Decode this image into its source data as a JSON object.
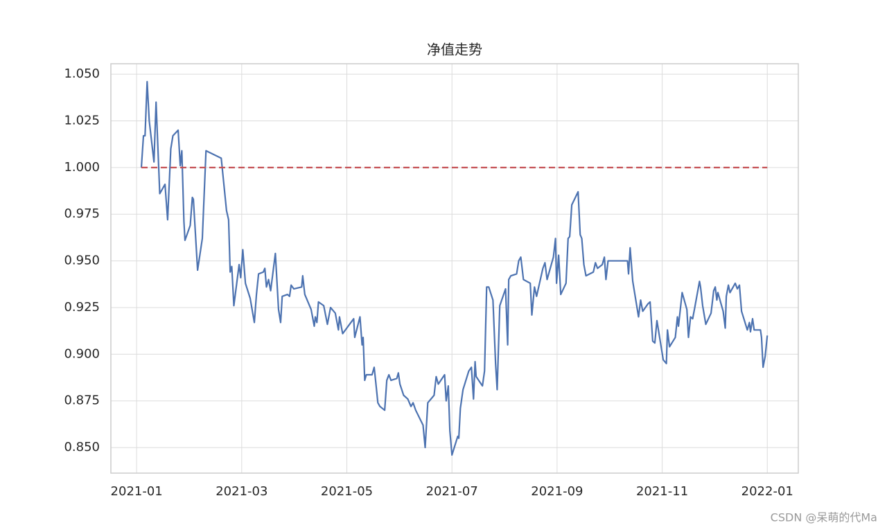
{
  "chart_data": {
    "type": "line",
    "title": "净值走势",
    "watermark": "CSDN @呆萌的代Ma",
    "xlim": [
      0.51,
      13.59
    ],
    "ylim": [
      0.8363,
      1.0556
    ],
    "grid": true,
    "xticks": [
      {
        "value": 1,
        "label": "2021-01"
      },
      {
        "value": 3,
        "label": "2021-03"
      },
      {
        "value": 5,
        "label": "2021-05"
      },
      {
        "value": 7,
        "label": "2021-07"
      },
      {
        "value": 9,
        "label": "2021-09"
      },
      {
        "value": 11,
        "label": "2021-11"
      },
      {
        "value": 13,
        "label": "2022-01"
      }
    ],
    "yticks": [
      {
        "value": 0.85,
        "label": "0.850"
      },
      0.875,
      {
        "value": 0.9,
        "label": "0.900"
      },
      0.925,
      {
        "value": 0.95,
        "label": "0.950"
      },
      0.975,
      {
        "value": 1.0,
        "label": "1.000"
      },
      1.025,
      {
        "value": 1.05,
        "label": "1.050"
      }
    ],
    "series": [
      {
        "color": "#4c72b0",
        "style": "solid",
        "x": [
          1.09,
          1.13,
          1.16,
          1.2,
          1.24,
          1.33,
          1.37,
          1.44,
          1.54,
          1.59,
          1.65,
          1.69,
          1.79,
          1.83,
          1.86,
          1.9,
          1.92,
          2.02,
          2.06,
          2.08,
          2.16,
          2.25,
          2.32,
          2.61,
          2.71,
          2.75,
          2.78,
          2.81,
          2.85,
          2.95,
          2.98,
          3.02,
          3.07,
          3.16,
          3.24,
          3.28,
          3.32,
          3.41,
          3.44,
          3.47,
          3.51,
          3.55,
          3.64,
          3.7,
          3.74,
          3.77,
          3.87,
          3.91,
          3.94,
          3.99,
          4.14,
          4.16,
          4.2,
          4.32,
          4.38,
          4.4,
          4.43,
          4.46,
          4.56,
          4.63,
          4.69,
          4.78,
          4.84,
          4.86,
          4.92,
          5.13,
          5.15,
          5.25,
          5.29,
          5.31,
          5.34,
          5.37,
          5.48,
          5.52,
          5.55,
          5.59,
          5.63,
          5.72,
          5.76,
          5.8,
          5.84,
          5.95,
          5.98,
          6.01,
          6.08,
          6.16,
          6.22,
          6.26,
          6.31,
          6.45,
          6.49,
          6.54,
          6.66,
          6.7,
          6.74,
          6.86,
          6.89,
          6.93,
          6.96,
          7.0,
          7.11,
          7.13,
          7.16,
          7.21,
          7.32,
          7.37,
          7.41,
          7.44,
          7.46,
          7.58,
          7.62,
          7.66,
          7.7,
          7.78,
          7.83,
          7.86,
          7.91,
          8.02,
          8.06,
          8.08,
          8.12,
          8.23,
          8.27,
          8.31,
          8.36,
          8.49,
          8.52,
          8.57,
          8.61,
          8.73,
          8.77,
          8.81,
          8.93,
          8.97,
          8.99,
          9.03,
          9.07,
          9.17,
          9.21,
          9.24,
          9.28,
          9.4,
          9.44,
          9.47,
          9.51,
          9.55,
          9.69,
          9.73,
          9.77,
          9.86,
          9.9,
          9.93,
          9.97,
          10.34,
          10.36,
          10.39,
          10.44,
          10.55,
          10.59,
          10.63,
          10.73,
          10.77,
          10.82,
          10.86,
          10.9,
          11.02,
          11.08,
          11.1,
          11.14,
          11.25,
          11.29,
          11.31,
          11.38,
          11.47,
          11.5,
          11.54,
          11.58,
          11.62,
          11.71,
          11.73,
          11.77,
          11.83,
          11.93,
          11.98,
          12.01,
          12.04,
          12.06,
          12.16,
          12.2,
          12.22,
          12.26,
          12.29,
          12.39,
          12.43,
          12.47,
          12.51,
          12.62,
          12.66,
          12.68,
          12.72,
          12.75,
          12.87,
          12.89,
          12.92,
          12.96,
          13.0
        ],
        "values": [
          1.0,
          1.017,
          1.017,
          1.046,
          1.025,
          1.003,
          1.035,
          0.986,
          0.991,
          0.972,
          1.01,
          1.017,
          1.02,
          1.001,
          1.009,
          0.971,
          0.961,
          0.969,
          0.984,
          0.983,
          0.945,
          0.962,
          1.009,
          1.005,
          0.977,
          0.972,
          0.944,
          0.947,
          0.926,
          0.948,
          0.941,
          0.956,
          0.938,
          0.93,
          0.917,
          0.932,
          0.943,
          0.944,
          0.946,
          0.936,
          0.94,
          0.934,
          0.954,
          0.924,
          0.917,
          0.931,
          0.932,
          0.931,
          0.937,
          0.935,
          0.936,
          0.942,
          0.932,
          0.924,
          0.915,
          0.92,
          0.917,
          0.928,
          0.926,
          0.916,
          0.925,
          0.922,
          0.913,
          0.92,
          0.911,
          0.919,
          0.909,
          0.92,
          0.905,
          0.909,
          0.886,
          0.889,
          0.889,
          0.893,
          0.885,
          0.874,
          0.872,
          0.87,
          0.886,
          0.889,
          0.886,
          0.887,
          0.89,
          0.884,
          0.878,
          0.876,
          0.872,
          0.874,
          0.87,
          0.862,
          0.85,
          0.874,
          0.878,
          0.888,
          0.884,
          0.889,
          0.875,
          0.883,
          0.859,
          0.846,
          0.856,
          0.855,
          0.871,
          0.881,
          0.891,
          0.893,
          0.876,
          0.896,
          0.888,
          0.883,
          0.891,
          0.936,
          0.936,
          0.929,
          0.895,
          0.881,
          0.926,
          0.935,
          0.905,
          0.94,
          0.942,
          0.943,
          0.95,
          0.952,
          0.94,
          0.938,
          0.921,
          0.936,
          0.931,
          0.946,
          0.949,
          0.94,
          0.952,
          0.962,
          0.938,
          0.953,
          0.932,
          0.938,
          0.962,
          0.963,
          0.98,
          0.987,
          0.964,
          0.962,
          0.948,
          0.942,
          0.944,
          0.949,
          0.946,
          0.948,
          0.952,
          0.94,
          0.95,
          0.95,
          0.943,
          0.957,
          0.939,
          0.92,
          0.929,
          0.923,
          0.927,
          0.928,
          0.907,
          0.906,
          0.918,
          0.897,
          0.895,
          0.913,
          0.904,
          0.909,
          0.92,
          0.915,
          0.933,
          0.924,
          0.909,
          0.92,
          0.919,
          0.925,
          0.939,
          0.936,
          0.926,
          0.916,
          0.922,
          0.934,
          0.936,
          0.929,
          0.933,
          0.923,
          0.914,
          0.931,
          0.937,
          0.933,
          0.938,
          0.935,
          0.937,
          0.923,
          0.913,
          0.917,
          0.912,
          0.919,
          0.913,
          0.913,
          0.909,
          0.893,
          0.899,
          0.91
        ]
      },
      {
        "color": "#c44e52",
        "style": "dashed",
        "x": [
          1.09,
          13.0
        ],
        "values": [
          1.0,
          1.0
        ]
      }
    ]
  }
}
